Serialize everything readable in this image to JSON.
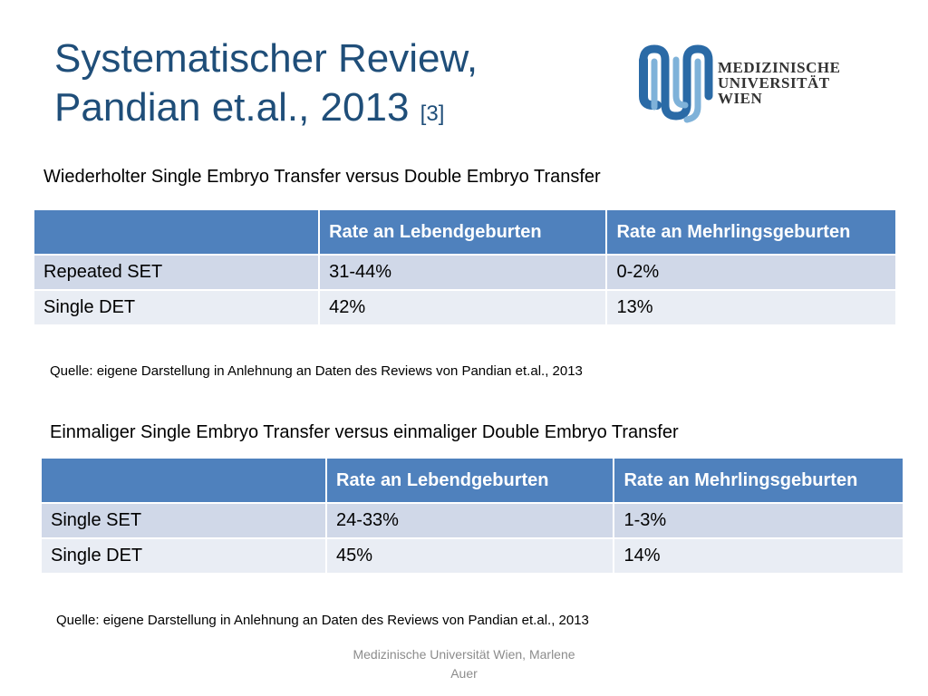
{
  "slide": {
    "title_line1": "Systematischer Review,",
    "title_line2": "Pandian et.al., 2013",
    "title_ref": "[3]"
  },
  "logo": {
    "line1": "MEDIZINISCHE",
    "line2": "UNIVERSITÄT",
    "line3": "WIEN",
    "colors": {
      "dark": "#2a6aa6",
      "light": "#7fb2d9"
    }
  },
  "section1": {
    "heading": "Wiederholter Single Embryo Transfer versus Double Embryo Transfer",
    "table": {
      "headers": [
        "",
        "Rate an Lebendgeburten",
        "Rate an Mehrlingsgeburten"
      ],
      "rows": [
        [
          "Repeated SET",
          "31-44%",
          "0-2%"
        ],
        [
          "Single DET",
          "42%",
          "13%"
        ]
      ]
    },
    "source": "Quelle: eigene Darstellung in Anlehnung an Daten des Reviews von Pandian et.al., 2013"
  },
  "section2": {
    "heading": "Einmaliger Single Embryo Transfer versus einmaliger Double Embryo Transfer",
    "table": {
      "headers": [
        "",
        "Rate an Lebendgeburten",
        "Rate an Mehrlingsgeburten"
      ],
      "rows": [
        [
          "Single SET",
          "24-33%",
          "1-3%"
        ],
        [
          "Single DET",
          "45%",
          "14%"
        ]
      ]
    },
    "source": "Quelle: eigene Darstellung in Anlehnung an Daten des Reviews von Pandian et.al., 2013"
  },
  "footer": {
    "line1": "Medizinische Universität Wien, Marlene",
    "line2": "Auer"
  },
  "colors": {
    "title": "#1f4e79",
    "table_header": "#4f81bd",
    "row_dark": "#d0d8e8",
    "row_light": "#e9edf4",
    "footer": "#8c8c8c"
  }
}
